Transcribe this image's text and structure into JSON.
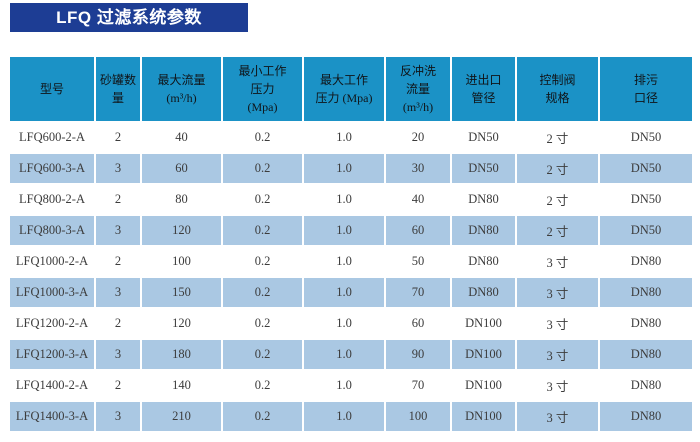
{
  "title": {
    "text": "LFQ 过滤系统参数"
  },
  "colors": {
    "page_bg": "#ffffff",
    "title_bg": "#1d3d94",
    "title_text": "#ffffff",
    "header_bg": "#1b92c6",
    "header_text": "#101418",
    "row_bg": "#ffffff",
    "row_alt_bg": "#aac8e3",
    "cell_text": "#3c3c3c",
    "grid": "#ffffff"
  },
  "table": {
    "columns": [
      {
        "id": "model",
        "label": "型号"
      },
      {
        "id": "tank-count",
        "label": "砂罐数\n量"
      },
      {
        "id": "max-flow",
        "label": "最大流量\n(m³/h)"
      },
      {
        "id": "min-pressure",
        "label": "最小工作\n压力\n(Mpa)"
      },
      {
        "id": "max-pressure",
        "label": "最大工作\n压力 (Mpa)"
      },
      {
        "id": "backwash-flow",
        "label": "反冲洗\n流量\n(m³/h)"
      },
      {
        "id": "inlet-outlet-diameter",
        "label": "进出口\n管径"
      },
      {
        "id": "control-valve-spec",
        "label": "控制阀\n规格"
      },
      {
        "id": "drain-diameter",
        "label": "排污\n口径"
      }
    ],
    "rows": [
      [
        "LFQ600-2-A",
        "2",
        "40",
        "0.2",
        "1.0",
        "20",
        "DN50",
        "2 寸",
        "DN50"
      ],
      [
        "LFQ600-3-A",
        "3",
        "60",
        "0.2",
        "1.0",
        "30",
        "DN50",
        "2 寸",
        "DN50"
      ],
      [
        "LFQ800-2-A",
        "2",
        "80",
        "0.2",
        "1.0",
        "40",
        "DN80",
        "2 寸",
        "DN50"
      ],
      [
        "LFQ800-3-A",
        "3",
        "120",
        "0.2",
        "1.0",
        "60",
        "DN80",
        "2 寸",
        "DN50"
      ],
      [
        "LFQ1000-2-A",
        "2",
        "100",
        "0.2",
        "1.0",
        "50",
        "DN80",
        "3 寸",
        "DN80"
      ],
      [
        "LFQ1000-3-A",
        "3",
        "150",
        "0.2",
        "1.0",
        "70",
        "DN80",
        "3 寸",
        "DN80"
      ],
      [
        "LFQ1200-2-A",
        "2",
        "120",
        "0.2",
        "1.0",
        "60",
        "DN100",
        "3 寸",
        "DN80"
      ],
      [
        "LFQ1200-3-A",
        "3",
        "180",
        "0.2",
        "1.0",
        "90",
        "DN100",
        "3 寸",
        "DN80"
      ],
      [
        "LFQ1400-2-A",
        "2",
        "140",
        "0.2",
        "1.0",
        "70",
        "DN100",
        "3 寸",
        "DN80"
      ],
      [
        "LFQ1400-3-A",
        "3",
        "210",
        "0.2",
        "1.0",
        "100",
        "DN100",
        "3 寸",
        "DN80"
      ]
    ]
  }
}
